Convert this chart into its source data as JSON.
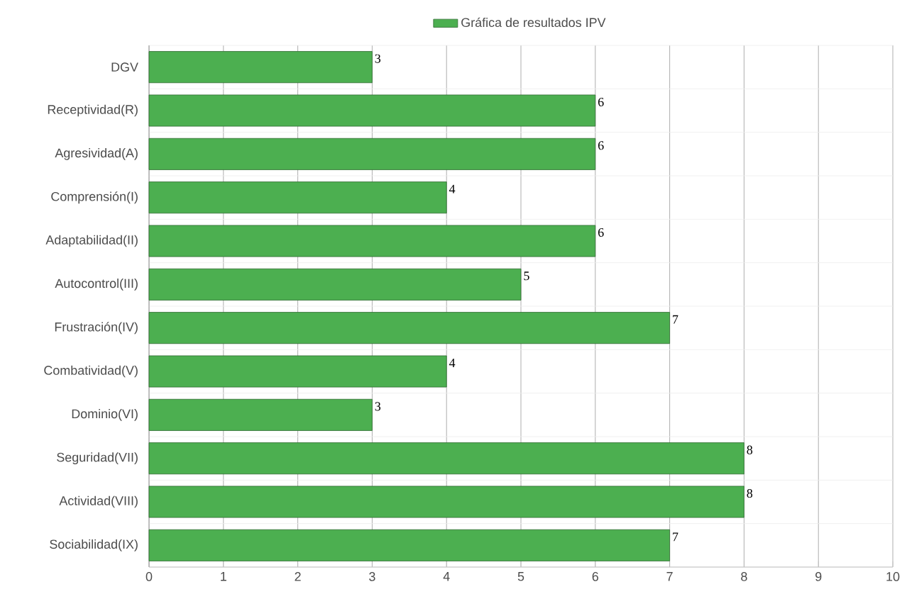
{
  "chart_data": {
    "type": "bar",
    "orientation": "horizontal",
    "categories": [
      "DGV",
      "Receptividad(R)",
      "Agresividad(A)",
      "Comprensión(I)",
      "Adaptabilidad(II)",
      "Autocontrol(III)",
      "Frustración(IV)",
      "Combatividad(V)",
      "Dominio(VI)",
      "Seguridad(VII)",
      "Actividad(VIII)",
      "Sociabilidad(IX)"
    ],
    "series": [
      {
        "name": "Gráfica de resultados IPV",
        "color": "#4caf50",
        "values": [
          3,
          6,
          6,
          4,
          6,
          5,
          7,
          4,
          3,
          8,
          8,
          7
        ]
      }
    ],
    "xlim": [
      0,
      10
    ],
    "xticks": [
      0,
      1,
      2,
      3,
      4,
      5,
      6,
      7,
      8,
      9,
      10
    ],
    "grid": true,
    "legend": "top",
    "data_labels": true
  }
}
